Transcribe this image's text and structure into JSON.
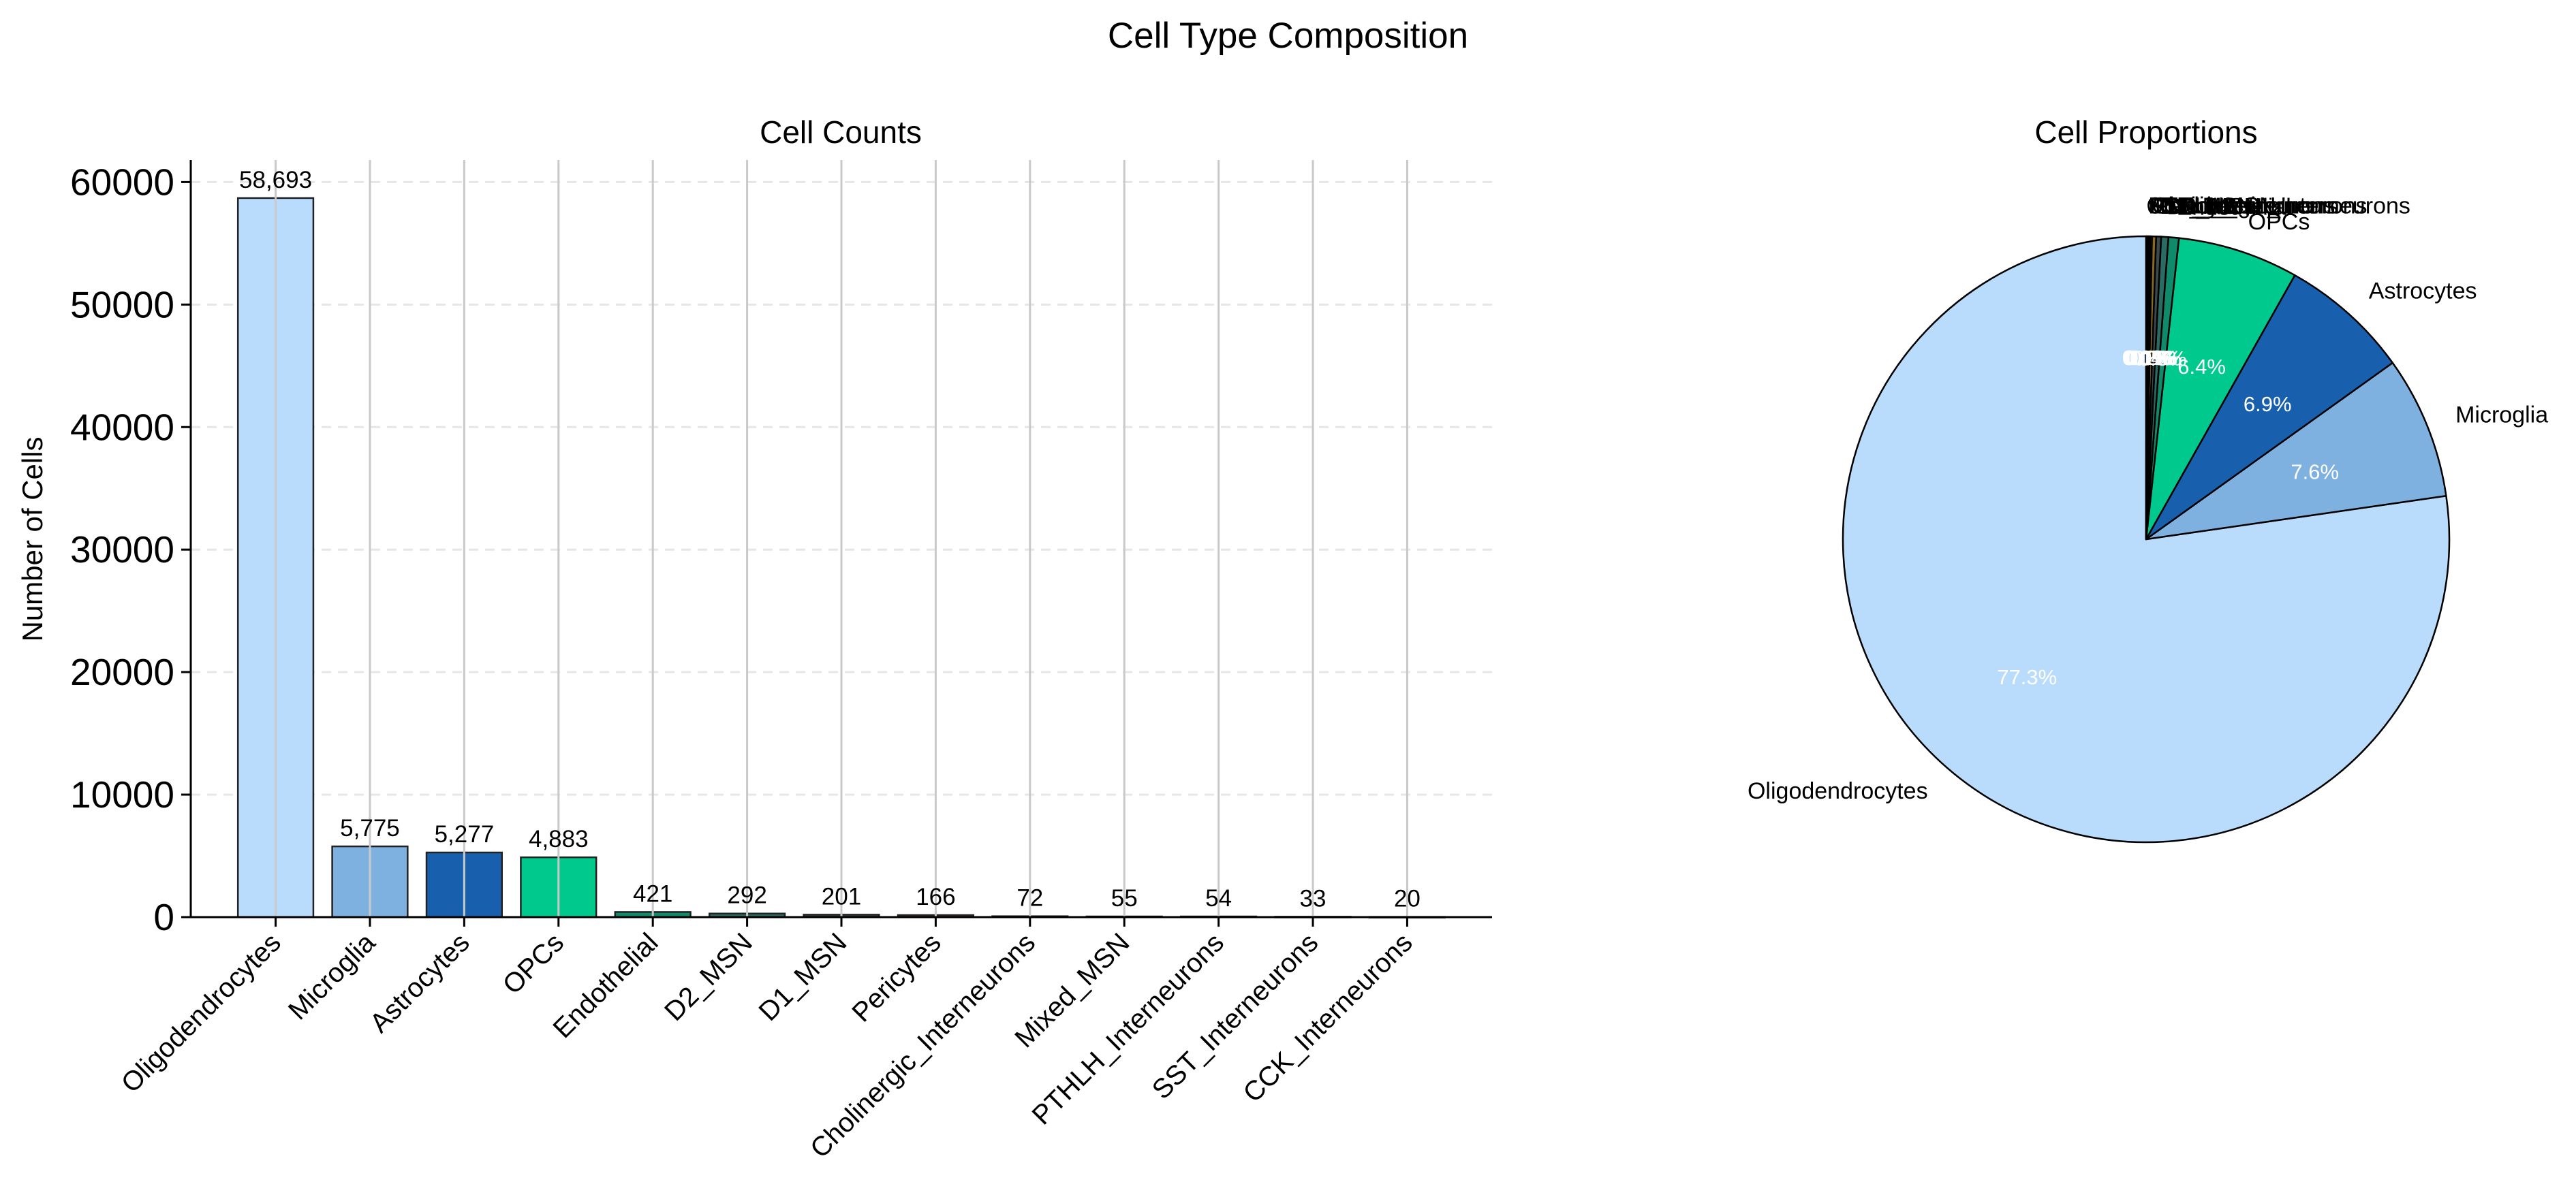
{
  "figure_title": "Cell Type Composition",
  "colors": {
    "Oligodendrocytes": "#b9dcfc",
    "Microglia": "#7fb1e0",
    "Astrocytes": "#1860ae",
    "OPCs": "#00c98e",
    "Endothelial": "#0f8a6a",
    "D2_MSN": "#2a6b63",
    "D1_MSN": "#3a4a4c",
    "Pericytes": "#8b6a1a",
    "Cholinergic_Interneurons": "#c89a18",
    "Mixed_MSN": "#e9b727",
    "PTHLH_Interneurons": "#5b4d2b",
    "SST_Interneurons": "#2d2d2d",
    "CCK_Interneurons": "#1a1a1a"
  },
  "chart_data": [
    {
      "type": "bar",
      "title": "Cell Counts",
      "xlabel": "",
      "ylabel": "Number of Cells",
      "categories": [
        "Oligodendrocytes",
        "Microglia",
        "Astrocytes",
        "OPCs",
        "Endothelial",
        "D2_MSN",
        "D1_MSN",
        "Pericytes",
        "Cholinergic_Interneurons",
        "Mixed_MSN",
        "PTHLH_Interneurons",
        "SST_Interneurons",
        "CCK_Interneurons"
      ],
      "values": [
        58693,
        5775,
        5277,
        4883,
        421,
        292,
        201,
        166,
        72,
        55,
        54,
        33,
        20
      ],
      "value_labels": [
        "58,693",
        "5,775",
        "5,277",
        "4,883",
        "421",
        "292",
        "201",
        "166",
        "72",
        "55",
        "54",
        "33",
        "20"
      ],
      "yticks": [
        "0",
        "10000",
        "20000",
        "30000",
        "40000",
        "50000",
        "60000"
      ],
      "ylim": [
        0,
        61800
      ],
      "grid": "on"
    },
    {
      "type": "pie",
      "title": "Cell Proportions",
      "labels": [
        "Oligodendrocytes",
        "Microglia",
        "Astrocytes",
        "OPCs",
        "Endothelial",
        "D2_MSN",
        "D1_MSN",
        "Pericytes",
        "Cholinergic_Interneurons",
        "Mixed_MSN",
        "PTHLH_Interneurons",
        "SST_Interneurons",
        "CCK_Interneurons"
      ],
      "values": [
        58693,
        5775,
        5277,
        4883,
        421,
        292,
        201,
        166,
        72,
        55,
        54,
        33,
        20
      ],
      "percent_labels": [
        "77.3%",
        "7.6%",
        "6.9%",
        "6.4%",
        "0.6%",
        "0.4%",
        "0.3%",
        "0.2%",
        "0.1%",
        "0.1%",
        "0.1%",
        "0.0%",
        "0.0%"
      ]
    }
  ]
}
